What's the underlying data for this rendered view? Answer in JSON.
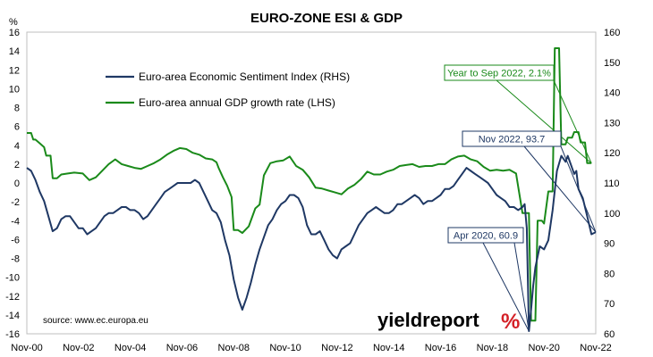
{
  "chart_data": {
    "type": "line",
    "title": "EURO-ZONE ESI & GDP",
    "ylabel_left": "%",
    "x_ticks": [
      "Nov-00",
      "Nov-02",
      "Nov-04",
      "Nov-06",
      "Nov-08",
      "Nov-10",
      "Nov-12",
      "Nov-14",
      "Nov-16",
      "Nov-18",
      "Nov-20",
      "Nov-22"
    ],
    "y_left_ticks": [
      -16,
      -14,
      -12,
      -10,
      -8,
      -6,
      -4,
      -2,
      0,
      2,
      4,
      6,
      8,
      10,
      12,
      14,
      16
    ],
    "y_left_range": [
      -16,
      16
    ],
    "y_right_ticks": [
      60,
      70,
      80,
      90,
      100,
      110,
      120,
      130,
      140,
      150,
      160
    ],
    "y_right_range": [
      60,
      160
    ],
    "x_range": [
      "2000-11",
      "2022-11"
    ],
    "grid": false,
    "legend_position": "top-left",
    "colors": {
      "esi": "#1f3864",
      "gdp": "#1a8a1a",
      "annotation_esi": "#1f3864",
      "annotation_gdp": "#1a8a1a",
      "logo_pct": "#d42027"
    },
    "series": [
      {
        "name": "Euro-area Economic Sentiment Index (RHS)",
        "axis": "right",
        "points": [
          [
            "2000-11",
            115
          ],
          [
            "2001-01",
            114
          ],
          [
            "2001-03",
            111
          ],
          [
            "2001-05",
            107
          ],
          [
            "2001-07",
            104
          ],
          [
            "2001-09",
            99
          ],
          [
            "2001-11",
            94
          ],
          [
            "2002-01",
            95
          ],
          [
            "2002-03",
            98
          ],
          [
            "2002-05",
            99
          ],
          [
            "2002-07",
            99
          ],
          [
            "2002-09",
            97
          ],
          [
            "2002-11",
            95
          ],
          [
            "2003-01",
            95
          ],
          [
            "2003-03",
            93
          ],
          [
            "2003-05",
            94
          ],
          [
            "2003-07",
            95
          ],
          [
            "2003-09",
            97
          ],
          [
            "2003-11",
            99
          ],
          [
            "2004-01",
            100
          ],
          [
            "2004-03",
            100
          ],
          [
            "2004-05",
            101
          ],
          [
            "2004-07",
            102
          ],
          [
            "2004-09",
            102
          ],
          [
            "2004-11",
            101
          ],
          [
            "2005-01",
            101
          ],
          [
            "2005-03",
            100
          ],
          [
            "2005-05",
            98
          ],
          [
            "2005-07",
            99
          ],
          [
            "2005-09",
            101
          ],
          [
            "2005-11",
            103
          ],
          [
            "2006-01",
            105
          ],
          [
            "2006-03",
            107
          ],
          [
            "2006-05",
            108
          ],
          [
            "2006-07",
            109
          ],
          [
            "2006-09",
            110
          ],
          [
            "2006-11",
            110
          ],
          [
            "2007-01",
            110
          ],
          [
            "2007-03",
            110
          ],
          [
            "2007-05",
            111
          ],
          [
            "2007-07",
            110
          ],
          [
            "2007-09",
            107
          ],
          [
            "2007-11",
            104
          ],
          [
            "2008-01",
            101
          ],
          [
            "2008-03",
            100
          ],
          [
            "2008-05",
            97
          ],
          [
            "2008-07",
            91
          ],
          [
            "2008-09",
            86
          ],
          [
            "2008-11",
            78
          ],
          [
            "2009-01",
            72
          ],
          [
            "2009-03",
            68
          ],
          [
            "2009-05",
            72
          ],
          [
            "2009-07",
            77
          ],
          [
            "2009-09",
            83
          ],
          [
            "2009-11",
            88
          ],
          [
            "2010-01",
            92
          ],
          [
            "2010-03",
            96
          ],
          [
            "2010-05",
            98
          ],
          [
            "2010-07",
            101
          ],
          [
            "2010-09",
            103
          ],
          [
            "2010-11",
            104
          ],
          [
            "2011-01",
            106
          ],
          [
            "2011-03",
            106
          ],
          [
            "2011-05",
            105
          ],
          [
            "2011-07",
            102
          ],
          [
            "2011-09",
            96
          ],
          [
            "2011-11",
            93
          ],
          [
            "2012-01",
            93
          ],
          [
            "2012-03",
            94
          ],
          [
            "2012-05",
            91
          ],
          [
            "2012-07",
            88
          ],
          [
            "2012-09",
            86
          ],
          [
            "2012-11",
            85
          ],
          [
            "2013-01",
            88
          ],
          [
            "2013-03",
            89
          ],
          [
            "2013-05",
            90
          ],
          [
            "2013-07",
            93
          ],
          [
            "2013-09",
            96
          ],
          [
            "2013-11",
            98
          ],
          [
            "2014-01",
            100
          ],
          [
            "2014-03",
            101
          ],
          [
            "2014-05",
            102
          ],
          [
            "2014-07",
            101
          ],
          [
            "2014-09",
            100
          ],
          [
            "2014-11",
            100
          ],
          [
            "2015-01",
            101
          ],
          [
            "2015-03",
            103
          ],
          [
            "2015-05",
            103
          ],
          [
            "2015-07",
            104
          ],
          [
            "2015-09",
            105
          ],
          [
            "2015-11",
            106
          ],
          [
            "2016-01",
            105
          ],
          [
            "2016-03",
            103
          ],
          [
            "2016-05",
            104
          ],
          [
            "2016-07",
            104
          ],
          [
            "2016-09",
            105
          ],
          [
            "2016-11",
            106
          ],
          [
            "2017-01",
            108
          ],
          [
            "2017-03",
            108
          ],
          [
            "2017-05",
            109
          ],
          [
            "2017-07",
            111
          ],
          [
            "2017-09",
            113
          ],
          [
            "2017-11",
            115
          ],
          [
            "2018-01",
            114
          ],
          [
            "2018-03",
            113
          ],
          [
            "2018-05",
            112
          ],
          [
            "2018-07",
            111
          ],
          [
            "2018-09",
            110
          ],
          [
            "2018-11",
            108
          ],
          [
            "2019-01",
            106
          ],
          [
            "2019-03",
            105
          ],
          [
            "2019-05",
            104
          ],
          [
            "2019-07",
            102
          ],
          [
            "2019-09",
            102
          ],
          [
            "2019-11",
            101
          ],
          [
            "2020-01",
            102
          ],
          [
            "2020-02",
            103
          ],
          [
            "2020-03",
            95
          ],
          [
            "2020-04",
            60.9
          ],
          [
            "2020-05",
            68
          ],
          [
            "2020-06",
            76
          ],
          [
            "2020-07",
            82
          ],
          [
            "2020-09",
            89
          ],
          [
            "2020-11",
            88
          ],
          [
            "2021-01",
            91
          ],
          [
            "2021-03",
            101
          ],
          [
            "2021-05",
            114
          ],
          [
            "2021-07",
            119
          ],
          [
            "2021-09",
            117
          ],
          [
            "2021-10",
            119
          ],
          [
            "2021-11",
            117
          ],
          [
            "2022-01",
            113
          ],
          [
            "2022-02",
            114
          ],
          [
            "2022-03",
            108
          ],
          [
            "2022-05",
            105
          ],
          [
            "2022-07",
            99
          ],
          [
            "2022-09",
            93
          ],
          [
            "2022-11",
            93.7
          ]
        ]
      },
      {
        "name": "Euro-area annual GDP growth rate (LHS)",
        "axis": "left",
        "points": [
          [
            "2000-11",
            5.3
          ],
          [
            "2001-01",
            5.3
          ],
          [
            "2001-02",
            4.6
          ],
          [
            "2001-03",
            4.6
          ],
          [
            "2001-05",
            4.2
          ],
          [
            "2001-07",
            3.8
          ],
          [
            "2001-08",
            2.9
          ],
          [
            "2001-10",
            2.9
          ],
          [
            "2001-11",
            0.5
          ],
          [
            "2002-01",
            0.5
          ],
          [
            "2002-03",
            0.9
          ],
          [
            "2002-06",
            1.0
          ],
          [
            "2002-09",
            1.1
          ],
          [
            "2003-01",
            1.0
          ],
          [
            "2003-04",
            0.3
          ],
          [
            "2003-07",
            0.6
          ],
          [
            "2003-10",
            1.3
          ],
          [
            "2004-01",
            2.0
          ],
          [
            "2004-04",
            2.5
          ],
          [
            "2004-07",
            2.0
          ],
          [
            "2004-10",
            1.8
          ],
          [
            "2005-01",
            1.6
          ],
          [
            "2005-04",
            1.5
          ],
          [
            "2005-07",
            1.8
          ],
          [
            "2005-10",
            2.1
          ],
          [
            "2006-01",
            2.5
          ],
          [
            "2006-04",
            3.0
          ],
          [
            "2006-07",
            3.4
          ],
          [
            "2006-10",
            3.7
          ],
          [
            "2007-01",
            3.6
          ],
          [
            "2007-04",
            3.2
          ],
          [
            "2007-07",
            3.0
          ],
          [
            "2007-10",
            2.6
          ],
          [
            "2008-01",
            2.5
          ],
          [
            "2008-03",
            2.2
          ],
          [
            "2008-04",
            1.6
          ],
          [
            "2008-06",
            0.6
          ],
          [
            "2008-08",
            -0.3
          ],
          [
            "2008-10",
            -1.5
          ],
          [
            "2008-11",
            -5.0
          ],
          [
            "2009-01",
            -5.0
          ],
          [
            "2009-03",
            -5.3
          ],
          [
            "2009-06",
            -4.6
          ],
          [
            "2009-09",
            -2.7
          ],
          [
            "2009-11",
            -2.3
          ],
          [
            "2010-01",
            0.8
          ],
          [
            "2010-04",
            2.1
          ],
          [
            "2010-07",
            2.3
          ],
          [
            "2010-10",
            2.4
          ],
          [
            "2011-01",
            2.8
          ],
          [
            "2011-04",
            1.8
          ],
          [
            "2011-07",
            1.4
          ],
          [
            "2011-10",
            0.6
          ],
          [
            "2012-01",
            -0.5
          ],
          [
            "2012-04",
            -0.6
          ],
          [
            "2012-07",
            -0.8
          ],
          [
            "2012-10",
            -1.0
          ],
          [
            "2013-01",
            -1.2
          ],
          [
            "2013-04",
            -0.6
          ],
          [
            "2013-07",
            -0.2
          ],
          [
            "2013-10",
            0.4
          ],
          [
            "2014-01",
            1.2
          ],
          [
            "2014-04",
            0.9
          ],
          [
            "2014-07",
            0.9
          ],
          [
            "2014-10",
            1.2
          ],
          [
            "2015-01",
            1.4
          ],
          [
            "2015-04",
            1.8
          ],
          [
            "2015-07",
            1.9
          ],
          [
            "2015-10",
            2.0
          ],
          [
            "2016-01",
            1.7
          ],
          [
            "2016-04",
            1.8
          ],
          [
            "2016-07",
            1.8
          ],
          [
            "2016-10",
            2.0
          ],
          [
            "2017-01",
            2.0
          ],
          [
            "2017-04",
            2.5
          ],
          [
            "2017-07",
            2.8
          ],
          [
            "2017-10",
            2.9
          ],
          [
            "2018-01",
            2.5
          ],
          [
            "2018-04",
            2.3
          ],
          [
            "2018-07",
            1.7
          ],
          [
            "2018-10",
            1.3
          ],
          [
            "2019-01",
            1.4
          ],
          [
            "2019-04",
            1.3
          ],
          [
            "2019-07",
            1.4
          ],
          [
            "2019-10",
            1.0
          ],
          [
            "2020-01",
            -3.2
          ],
          [
            "2020-04",
            -3.2
          ],
          [
            "2020-05",
            -14.6
          ],
          [
            "2020-07",
            -14.6
          ],
          [
            "2020-08",
            -4.0
          ],
          [
            "2020-10",
            -4.0
          ],
          [
            "2020-11",
            -4.3
          ],
          [
            "2021-01",
            -0.9
          ],
          [
            "2021-03",
            -0.9
          ],
          [
            "2021-04",
            14.3
          ],
          [
            "2021-06",
            14.3
          ],
          [
            "2021-07",
            4.1
          ],
          [
            "2021-09",
            4.1
          ],
          [
            "2021-10",
            4.8
          ],
          [
            "2021-12",
            4.8
          ],
          [
            "2022-01",
            5.4
          ],
          [
            "2022-03",
            5.4
          ],
          [
            "2022-04",
            4.3
          ],
          [
            "2022-06",
            4.3
          ],
          [
            "2022-07",
            2.1
          ],
          [
            "2022-09",
            2.1
          ]
        ]
      }
    ],
    "annotations": [
      {
        "text": "Year to Sep 2022, 2.1%",
        "series": "gdp",
        "target": [
          "2022-09",
          2.1
        ]
      },
      {
        "text": "Nov 2022, 93.7",
        "series": "esi",
        "target": [
          "2022-11",
          93.7
        ]
      },
      {
        "text": "Apr 2020, 60.9",
        "series": "esi",
        "target": [
          "2020-04",
          60.9
        ]
      }
    ],
    "source": "source: www.ec.europa.eu",
    "logo": {
      "main": "yieldreport",
      "pct": "%"
    }
  }
}
